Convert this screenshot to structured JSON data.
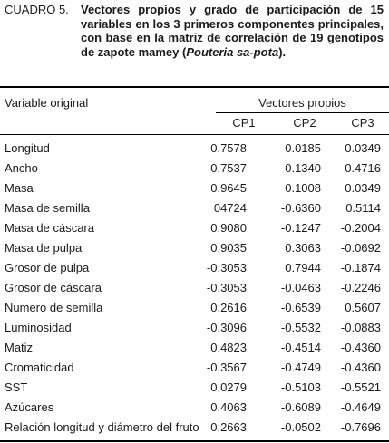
{
  "caption": {
    "label": "CUADRO 5.",
    "text_before_italic": "Vectores propios y grado de participación de 15 variables en los 3 primeros componentes principales, con base en la matriz de correlación de 19 genotipos de zapote mamey (",
    "italic": "Pouteria sa-pota",
    "text_after_italic": ")."
  },
  "table": {
    "col_variable": "Variable original",
    "col_group": "Vectores propios",
    "cp_headers": [
      "CP1",
      "CP2",
      "CP3"
    ],
    "rows": [
      {
        "label": "Longitud",
        "values": [
          "0.7578",
          "0.0185",
          "0.0349"
        ]
      },
      {
        "label": "Ancho",
        "values": [
          "0.7537",
          "0.1340",
          "0.4716"
        ]
      },
      {
        "label": "Masa",
        "values": [
          "0.9645",
          "0.1008",
          "0.0349"
        ]
      },
      {
        "label": "Masa de semilla",
        "values": [
          "04724",
          "-0.6360",
          "0.5114"
        ]
      },
      {
        "label": "Masa de cáscara",
        "values": [
          "0.9080",
          "-0.1247",
          "-0.2004"
        ]
      },
      {
        "label": "Masa de pulpa",
        "values": [
          "0.9035",
          "0.3063",
          "-0.0692"
        ]
      },
      {
        "label": "Grosor de pulpa",
        "values": [
          "-0.3053",
          "0.7944",
          "-0.1874"
        ]
      },
      {
        "label": "Grosor de cáscara",
        "values": [
          "-0.3053",
          "-0.0463",
          "-0.2246"
        ]
      },
      {
        "label": "Numero de semilla",
        "values": [
          "0.2616",
          "-0.6539",
          "0.5607"
        ]
      },
      {
        "label": "Luminosidad",
        "values": [
          "-0.3096",
          "-0.5532",
          "-0.0883"
        ]
      },
      {
        "label": "Matiz",
        "values": [
          "0.4823",
          "-0.4514",
          "-0.4360"
        ]
      },
      {
        "label": "Cromaticidad",
        "values": [
          "-0.3567",
          "-0.4749",
          "-0.4360"
        ]
      },
      {
        "label": "SST",
        "values": [
          "0.0279",
          "-0.5103",
          "-0.5521"
        ]
      },
      {
        "label": "Azúcares",
        "values": [
          "0.4063",
          "-0.6089",
          "-0.4649"
        ]
      },
      {
        "label": "Relación longitud y diámetro del fruto",
        "values": [
          "0.2663",
          "-0.0502",
          "-0.7696"
        ]
      }
    ]
  }
}
